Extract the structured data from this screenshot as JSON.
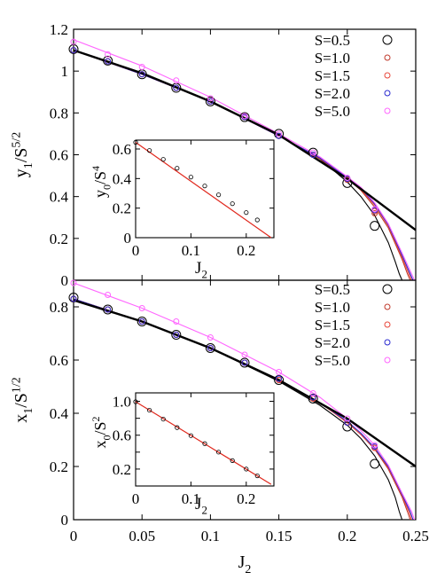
{
  "colors": {
    "S=0.5": "#000000",
    "S=1.0": "#c0392b",
    "S=1.5": "#e8463a",
    "S=2.0": "#2a2ad0",
    "S=5.0": "#ff66ff",
    "theory": "#000000",
    "inset_line": "#e0291e"
  },
  "chart_data": [
    {
      "type": "scatter",
      "panel": "top",
      "ylabel": "y1/S^5/2",
      "ylabel_parts": [
        "y",
        "1",
        "/S",
        "5/2"
      ],
      "xlabel": "",
      "xlim": [
        0,
        0.25
      ],
      "ylim": [
        0,
        1.2
      ],
      "yticks": [
        "0",
        "0.2",
        "0.4",
        "0.6",
        "0.8",
        "1",
        "1.2"
      ],
      "ytick_values": [
        0,
        0.2,
        0.4,
        0.6,
        0.8,
        1.0,
        1.2
      ],
      "legend_position": "top-right",
      "x": [
        0,
        0.025,
        0.05,
        0.075,
        0.1,
        0.125,
        0.15,
        0.175,
        0.2,
        0.22
      ],
      "series": [
        {
          "name": "S=0.5",
          "values": [
            1.105,
            1.05,
            0.985,
            0.92,
            0.855,
            0.78,
            0.7,
            0.61,
            0.465,
            0.26
          ]
        },
        {
          "name": "S=1.0",
          "values": [
            1.1,
            1.047,
            0.985,
            0.92,
            0.855,
            0.78,
            0.69,
            0.6,
            0.48,
            0.32
          ]
        },
        {
          "name": "S=1.5",
          "values": [
            1.1,
            1.047,
            0.985,
            0.92,
            0.855,
            0.78,
            0.69,
            0.6,
            0.485,
            0.33
          ]
        },
        {
          "name": "S=2.0",
          "values": [
            1.1,
            1.047,
            0.985,
            0.92,
            0.855,
            0.78,
            0.69,
            0.6,
            0.485,
            0.335
          ]
        },
        {
          "name": "S=5.0",
          "values": [
            1.14,
            1.08,
            1.02,
            0.955,
            0.87,
            0.785,
            0.7,
            0.61,
            0.49,
            0.34
          ]
        }
      ],
      "curves": [
        {
          "name": "S=0.5",
          "x": [
            0,
            0.05,
            0.1,
            0.15,
            0.18,
            0.2,
            0.21,
            0.22,
            0.23,
            0.235,
            0.238,
            0.24
          ],
          "values": [
            1.1,
            0.99,
            0.855,
            0.69,
            0.58,
            0.47,
            0.4,
            0.31,
            0.18,
            0.09,
            0.03,
            0.0
          ]
        },
        {
          "name": "S=1.0",
          "x": [
            0,
            0.05,
            0.1,
            0.15,
            0.18,
            0.2,
            0.21,
            0.22,
            0.23,
            0.24,
            0.244,
            0.246
          ],
          "values": [
            1.1,
            0.985,
            0.855,
            0.69,
            0.58,
            0.485,
            0.43,
            0.35,
            0.25,
            0.1,
            0.03,
            0.0
          ]
        },
        {
          "name": "S=1.5",
          "x": [
            0,
            0.05,
            0.1,
            0.15,
            0.18,
            0.2,
            0.21,
            0.22,
            0.23,
            0.24,
            0.245,
            0.247
          ],
          "values": [
            1.1,
            0.985,
            0.855,
            0.69,
            0.585,
            0.49,
            0.435,
            0.36,
            0.26,
            0.11,
            0.03,
            0.0
          ]
        },
        {
          "name": "S=2.0",
          "x": [
            0,
            0.05,
            0.1,
            0.15,
            0.18,
            0.2,
            0.21,
            0.22,
            0.23,
            0.24,
            0.246,
            0.248
          ],
          "values": [
            1.1,
            0.985,
            0.855,
            0.69,
            0.585,
            0.49,
            0.44,
            0.365,
            0.265,
            0.12,
            0.03,
            0.0
          ]
        },
        {
          "name": "S=5.0",
          "x": [
            0,
            0.05,
            0.1,
            0.15,
            0.18,
            0.2,
            0.21,
            0.22,
            0.23,
            0.24,
            0.247,
            0.249
          ],
          "values": [
            1.15,
            1.025,
            0.875,
            0.7,
            0.59,
            0.495,
            0.445,
            0.37,
            0.27,
            0.13,
            0.03,
            0.0
          ]
        },
        {
          "name": "theory",
          "x": [
            0,
            0.05,
            0.1,
            0.15,
            0.2,
            0.25
          ],
          "values": [
            1.1,
            0.99,
            0.855,
            0.695,
            0.485,
            0.24
          ]
        }
      ],
      "inset": {
        "ylabel": "y0/S^4",
        "ylabel_parts": [
          "y",
          "0",
          "/S",
          "4"
        ],
        "xlabel": "J2",
        "xlabel_parts": [
          "J",
          "2"
        ],
        "xlim": [
          0,
          0.25
        ],
        "ylim": [
          0,
          0.66
        ],
        "xticks": [
          "0",
          "0.1",
          "0.2"
        ],
        "xtick_values": [
          0,
          0.1,
          0.2
        ],
        "yticks": [
          "0",
          "0.2",
          "0.4",
          "0.6"
        ],
        "ytick_values": [
          0,
          0.2,
          0.4,
          0.6
        ],
        "x": [
          0,
          0.025,
          0.05,
          0.075,
          0.1,
          0.125,
          0.15,
          0.175,
          0.2,
          0.22
        ],
        "values": [
          0.645,
          0.59,
          0.53,
          0.47,
          0.41,
          0.35,
          0.29,
          0.23,
          0.17,
          0.12
        ],
        "line": {
          "x": [
            0,
            0.245
          ],
          "values": [
            0.645,
            0.0
          ]
        }
      }
    },
    {
      "type": "scatter",
      "panel": "bottom",
      "ylabel": "x1/S^1/2",
      "ylabel_parts": [
        "x",
        "1",
        "/S",
        "1/2"
      ],
      "xlabel": "J2",
      "xlabel_parts": [
        "J",
        "2"
      ],
      "xlim": [
        0,
        0.25
      ],
      "ylim": [
        0,
        0.9
      ],
      "xticks": [
        "0",
        "0.05",
        "0.1",
        "0.15",
        "0.2",
        "0.25"
      ],
      "xtick_values": [
        0,
        0.05,
        0.1,
        0.15,
        0.2,
        0.25
      ],
      "yticks": [
        "0",
        "0.2",
        "0.4",
        "0.6",
        "0.8"
      ],
      "ytick_values": [
        0,
        0.2,
        0.4,
        0.6,
        0.8
      ],
      "legend_position": "top-right",
      "x": [
        0,
        0.025,
        0.05,
        0.075,
        0.1,
        0.125,
        0.15,
        0.175,
        0.2,
        0.22
      ],
      "series": [
        {
          "name": "S=0.5",
          "values": [
            0.835,
            0.79,
            0.745,
            0.695,
            0.645,
            0.59,
            0.525,
            0.455,
            0.35,
            0.21
          ]
        },
        {
          "name": "S=1.0",
          "values": [
            0.83,
            0.79,
            0.745,
            0.695,
            0.645,
            0.59,
            0.525,
            0.455,
            0.365,
            0.27
          ]
        },
        {
          "name": "S=1.5",
          "values": [
            0.83,
            0.79,
            0.745,
            0.695,
            0.645,
            0.59,
            0.525,
            0.455,
            0.365,
            0.27
          ]
        },
        {
          "name": "S=2.0",
          "values": [
            0.83,
            0.79,
            0.745,
            0.695,
            0.645,
            0.59,
            0.53,
            0.46,
            0.365,
            0.275
          ]
        },
        {
          "name": "S=5.0",
          "values": [
            0.89,
            0.845,
            0.795,
            0.745,
            0.685,
            0.62,
            0.555,
            0.475,
            0.38,
            0.28
          ]
        }
      ],
      "curves": [
        {
          "name": "S=0.5",
          "x": [
            0,
            0.05,
            0.1,
            0.15,
            0.18,
            0.2,
            0.21,
            0.22,
            0.23,
            0.235,
            0.238,
            0.24
          ],
          "values": [
            0.83,
            0.745,
            0.645,
            0.52,
            0.43,
            0.355,
            0.305,
            0.24,
            0.15,
            0.085,
            0.03,
            0.0
          ]
        },
        {
          "name": "S=1.0",
          "x": [
            0,
            0.05,
            0.1,
            0.15,
            0.18,
            0.2,
            0.21,
            0.22,
            0.23,
            0.24,
            0.244,
            0.246
          ],
          "values": [
            0.83,
            0.745,
            0.645,
            0.525,
            0.44,
            0.365,
            0.32,
            0.265,
            0.19,
            0.085,
            0.03,
            0.0
          ]
        },
        {
          "name": "S=1.5",
          "x": [
            0,
            0.05,
            0.1,
            0.15,
            0.18,
            0.2,
            0.21,
            0.22,
            0.23,
            0.24,
            0.245,
            0.247
          ],
          "values": [
            0.83,
            0.745,
            0.645,
            0.525,
            0.44,
            0.365,
            0.32,
            0.27,
            0.195,
            0.09,
            0.03,
            0.0
          ]
        },
        {
          "name": "S=2.0",
          "x": [
            0,
            0.05,
            0.1,
            0.15,
            0.18,
            0.2,
            0.21,
            0.22,
            0.23,
            0.24,
            0.246,
            0.248
          ],
          "values": [
            0.83,
            0.745,
            0.645,
            0.525,
            0.44,
            0.37,
            0.325,
            0.27,
            0.2,
            0.095,
            0.03,
            0.0
          ]
        },
        {
          "name": "S=5.0",
          "x": [
            0,
            0.05,
            0.1,
            0.15,
            0.18,
            0.2,
            0.21,
            0.22,
            0.23,
            0.24,
            0.247,
            0.249
          ],
          "values": [
            0.89,
            0.795,
            0.685,
            0.555,
            0.46,
            0.38,
            0.335,
            0.28,
            0.205,
            0.1,
            0.03,
            0.0
          ]
        },
        {
          "name": "theory",
          "x": [
            0,
            0.05,
            0.1,
            0.15,
            0.2,
            0.25
          ],
          "values": [
            0.825,
            0.745,
            0.645,
            0.525,
            0.38,
            0.2
          ]
        }
      ],
      "inset": {
        "ylabel": "x0/S^2",
        "ylabel_parts": [
          "x",
          "0",
          "/S",
          "2"
        ],
        "xlabel": "J2",
        "xlabel_parts": [
          "J",
          "2"
        ],
        "xlim": [
          0,
          0.25
        ],
        "ylim": [
          0,
          1.1
        ],
        "xticks": [
          "0",
          "0.1",
          "0.2"
        ],
        "xtick_values": [
          0,
          0.1,
          0.2
        ],
        "yticks": [
          "0.2",
          "0.6",
          "1.0"
        ],
        "ytick_values": [
          0.2,
          0.6,
          1.0
        ],
        "extra_ytick_labels": [
          "0.4",
          "0.8"
        ],
        "extra_ytick_values": [
          0.4,
          0.8
        ],
        "x": [
          0,
          0.025,
          0.05,
          0.075,
          0.1,
          0.125,
          0.15,
          0.175,
          0.2,
          0.22
        ],
        "values": [
          0.995,
          0.895,
          0.79,
          0.69,
          0.595,
          0.5,
          0.4,
          0.3,
          0.2,
          0.12
        ],
        "line": {
          "x": [
            0,
            0.245
          ],
          "values": [
            0.995,
            0.02
          ]
        }
      }
    }
  ]
}
